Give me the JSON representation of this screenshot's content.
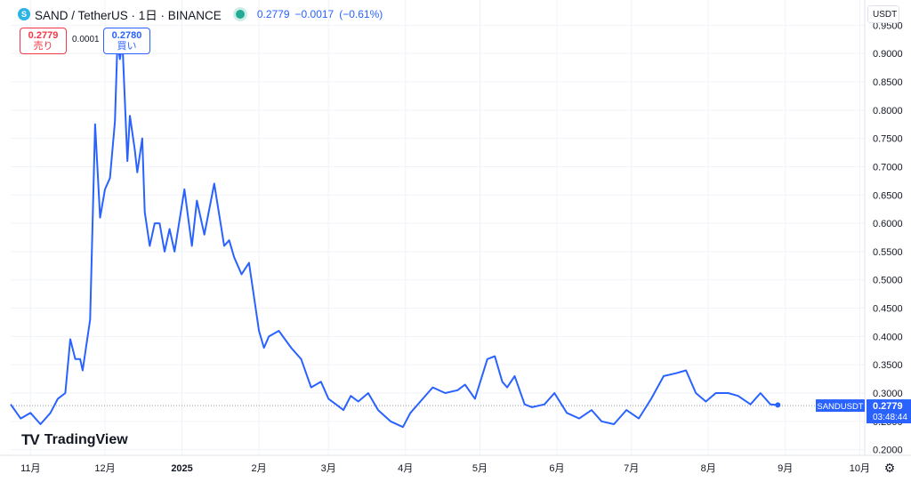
{
  "header": {
    "symbol_icon": "sand-coin-icon",
    "title": "SAND / TetherUS · 1日 · BINANCE",
    "last_price": "0.2779",
    "change": "−0.0017",
    "change_pct": "(−0.61%)"
  },
  "trade": {
    "sell_price": "0.2779",
    "sell_label": "売り",
    "spread": "0.0001",
    "buy_price": "0.2780",
    "buy_label": "買い"
  },
  "currency_button": "USDT",
  "logo_text": "TradingView",
  "settings_icon": "gear-icon",
  "colors": {
    "line": "#2962ff",
    "sell": "#f23645",
    "buy": "#2962ff",
    "live": "#22ab94"
  },
  "chart_data": {
    "type": "line",
    "x": [
      "2024-10-24",
      "2024-10-28",
      "2024-11-01",
      "2024-11-05",
      "2024-11-09",
      "2024-11-12",
      "2024-11-15",
      "2024-11-17",
      "2024-11-19",
      "2024-11-21",
      "2024-11-22",
      "2024-11-24",
      "2024-11-25",
      "2024-11-27",
      "2024-11-29",
      "2024-12-01",
      "2024-12-03",
      "2024-12-05",
      "2024-12-06",
      "2024-12-07",
      "2024-12-08",
      "2024-12-10",
      "2024-12-11",
      "2024-12-13",
      "2024-12-14",
      "2024-12-16",
      "2024-12-17",
      "2024-12-19",
      "2024-12-21",
      "2024-12-23",
      "2024-12-25",
      "2024-12-27",
      "2024-12-29",
      "2025-01-02",
      "2025-01-05",
      "2025-01-07",
      "2025-01-10",
      "2025-01-14",
      "2025-01-18",
      "2025-01-20",
      "2025-01-22",
      "2025-01-25",
      "2025-01-28",
      "2025-02-01",
      "2025-02-03",
      "2025-02-05",
      "2025-02-09",
      "2025-02-14",
      "2025-02-18",
      "2025-02-22",
      "2025-02-26",
      "2025-03-01",
      "2025-03-04",
      "2025-03-07",
      "2025-03-10",
      "2025-03-13",
      "2025-03-17",
      "2025-03-21",
      "2025-03-26",
      "2025-03-31",
      "2025-04-03",
      "2025-04-07",
      "2025-04-12",
      "2025-04-17",
      "2025-04-22",
      "2025-04-25",
      "2025-04-29",
      "2025-05-04",
      "2025-05-07",
      "2025-05-10",
      "2025-05-12",
      "2025-05-15",
      "2025-05-19",
      "2025-05-22",
      "2025-05-27",
      "2025-05-31",
      "2025-06-05",
      "2025-06-10",
      "2025-06-15",
      "2025-06-19",
      "2025-06-24",
      "2025-06-29",
      "2025-07-04",
      "2025-07-09",
      "2025-07-14",
      "2025-07-19",
      "2025-07-23",
      "2025-07-27",
      "2025-07-31",
      "2025-08-04",
      "2025-08-09",
      "2025-08-13",
      "2025-08-18",
      "2025-08-22",
      "2025-08-26",
      "2025-08-29"
    ],
    "values": [
      0.28,
      0.255,
      0.265,
      0.245,
      0.265,
      0.29,
      0.3,
      0.395,
      0.36,
      0.36,
      0.34,
      0.4,
      0.43,
      0.775,
      0.61,
      0.66,
      0.68,
      0.78,
      0.92,
      0.89,
      0.92,
      0.71,
      0.79,
      0.73,
      0.69,
      0.75,
      0.62,
      0.56,
      0.6,
      0.6,
      0.55,
      0.59,
      0.55,
      0.66,
      0.56,
      0.64,
      0.58,
      0.67,
      0.56,
      0.57,
      0.54,
      0.51,
      0.53,
      0.41,
      0.38,
      0.4,
      0.41,
      0.38,
      0.36,
      0.31,
      0.32,
      0.29,
      0.28,
      0.27,
      0.295,
      0.285,
      0.3,
      0.27,
      0.25,
      0.24,
      0.265,
      0.285,
      0.31,
      0.3,
      0.305,
      0.315,
      0.29,
      0.36,
      0.365,
      0.32,
      0.31,
      0.33,
      0.28,
      0.275,
      0.28,
      0.3,
      0.265,
      0.255,
      0.27,
      0.25,
      0.245,
      0.27,
      0.255,
      0.29,
      0.33,
      0.335,
      0.34,
      0.3,
      0.285,
      0.3,
      0.3,
      0.295,
      0.28,
      0.3,
      0.28,
      0.279
    ],
    "x_tick_labels": [
      "11月",
      "12月",
      "2025",
      "2月",
      "3月",
      "4月",
      "5月",
      "6月",
      "7月",
      "8月",
      "9月",
      "10月"
    ],
    "x_ticks": [
      "2024-11-01",
      "2024-12-01",
      "2025-01-01",
      "2025-02-01",
      "2025-03-01",
      "2025-04-01",
      "2025-05-01",
      "2025-06-01",
      "2025-07-01",
      "2025-08-01",
      "2025-09-01",
      "2025-10-01"
    ],
    "y_ticks": [
      0.2,
      0.25,
      0.3,
      0.35,
      0.4,
      0.45,
      0.5,
      0.55,
      0.6,
      0.65,
      0.7,
      0.75,
      0.8,
      0.85,
      0.9,
      0.95
    ],
    "y_tick_labels": [
      "0.2000",
      "0.2500",
      "0.3000",
      "0.3500",
      "0.4000",
      "0.4500",
      "0.5000",
      "0.5500",
      "0.6000",
      "0.6500",
      "0.7000",
      "0.7500",
      "0.8000",
      "0.8500",
      "0.9000",
      "0.9500"
    ],
    "ylim": [
      0.19,
      0.96
    ],
    "xlim": [
      "2024-10-24",
      "2025-10-03"
    ],
    "grid": true,
    "last_price_line": 0.2779,
    "price_tag": {
      "symbol": "SANDUSDT",
      "price": "0.2779",
      "countdown": "03:48:44"
    }
  }
}
